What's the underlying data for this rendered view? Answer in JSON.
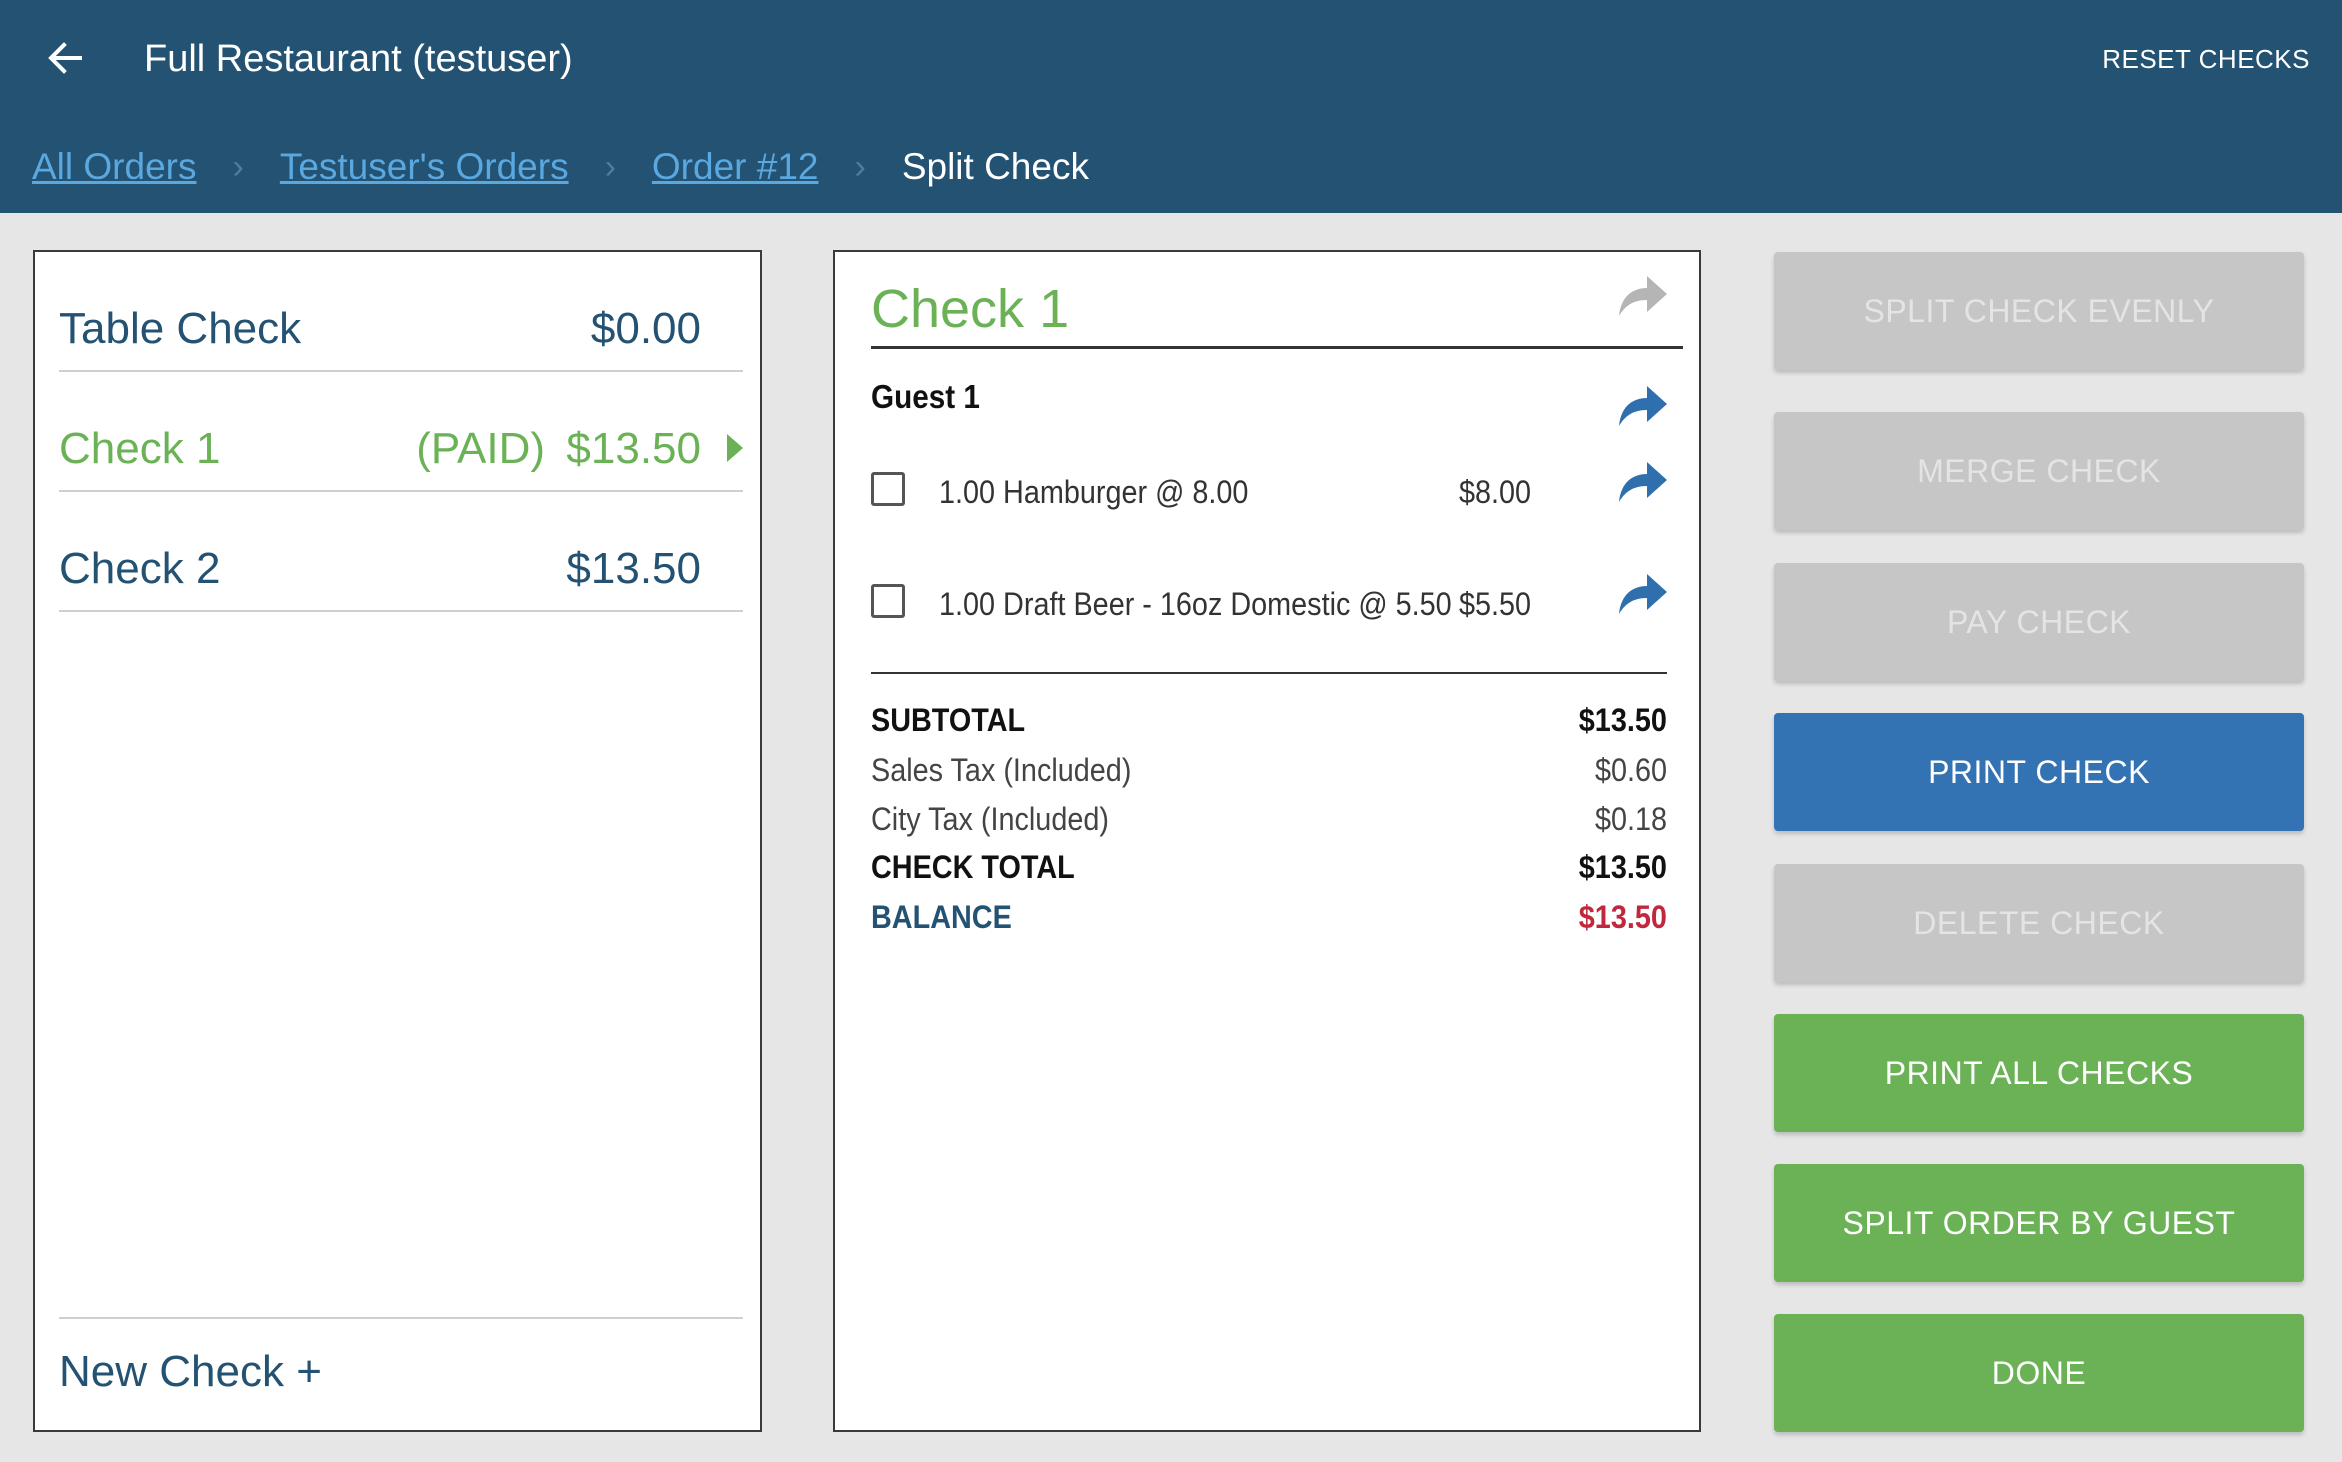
{
  "header": {
    "title": "Full Restaurant (testuser)",
    "reset_label": "RESET CHECKS"
  },
  "breadcrumb": {
    "items": [
      "All Orders",
      "Testuser's Orders",
      "Order #12"
    ],
    "current": "Split Check",
    "separator": "›"
  },
  "checks_list": {
    "rows": [
      {
        "name": "Table Check",
        "amount": "$0.00",
        "status": ""
      },
      {
        "name": "Check 1",
        "amount": "$13.50",
        "status": "(PAID)"
      },
      {
        "name": "Check 2",
        "amount": "$13.50",
        "status": ""
      }
    ],
    "new_check_label": "New Check +"
  },
  "check_detail": {
    "title": "Check 1",
    "guest": "Guest 1",
    "items": [
      {
        "description": "1.00 Hamburger @  8.00",
        "price": "$8.00"
      },
      {
        "description": "1.00 Draft Beer - 16oz Domestic @  5.50",
        "price": "$5.50"
      }
    ],
    "totals": {
      "subtotal_label": "SUBTOTAL",
      "subtotal": "$13.50",
      "sales_tax_label": "Sales Tax (Included)",
      "sales_tax": "$0.60",
      "city_tax_label": "City Tax (Included)",
      "city_tax": "$0.18",
      "check_total_label": "CHECK TOTAL",
      "check_total": "$13.50",
      "balance_label": "BALANCE",
      "balance": "$13.50"
    }
  },
  "actions": {
    "split_evenly": "SPLIT CHECK EVENLY",
    "merge": "MERGE CHECK",
    "pay": "PAY CHECK",
    "print": "PRINT CHECK",
    "delete": "DELETE CHECK",
    "print_all": "PRINT ALL CHECKS",
    "split_by_guest": "SPLIT ORDER BY GUEST",
    "done": "DONE"
  },
  "colors": {
    "header_bg": "#245272",
    "accent_green": "#6bb257",
    "accent_blue": "#3373b3",
    "disabled_gray": "#c6c6c6",
    "balance_red": "#c0283d"
  },
  "icons": [
    "back-arrow-icon",
    "share-icon",
    "chevron-right-icon"
  ]
}
